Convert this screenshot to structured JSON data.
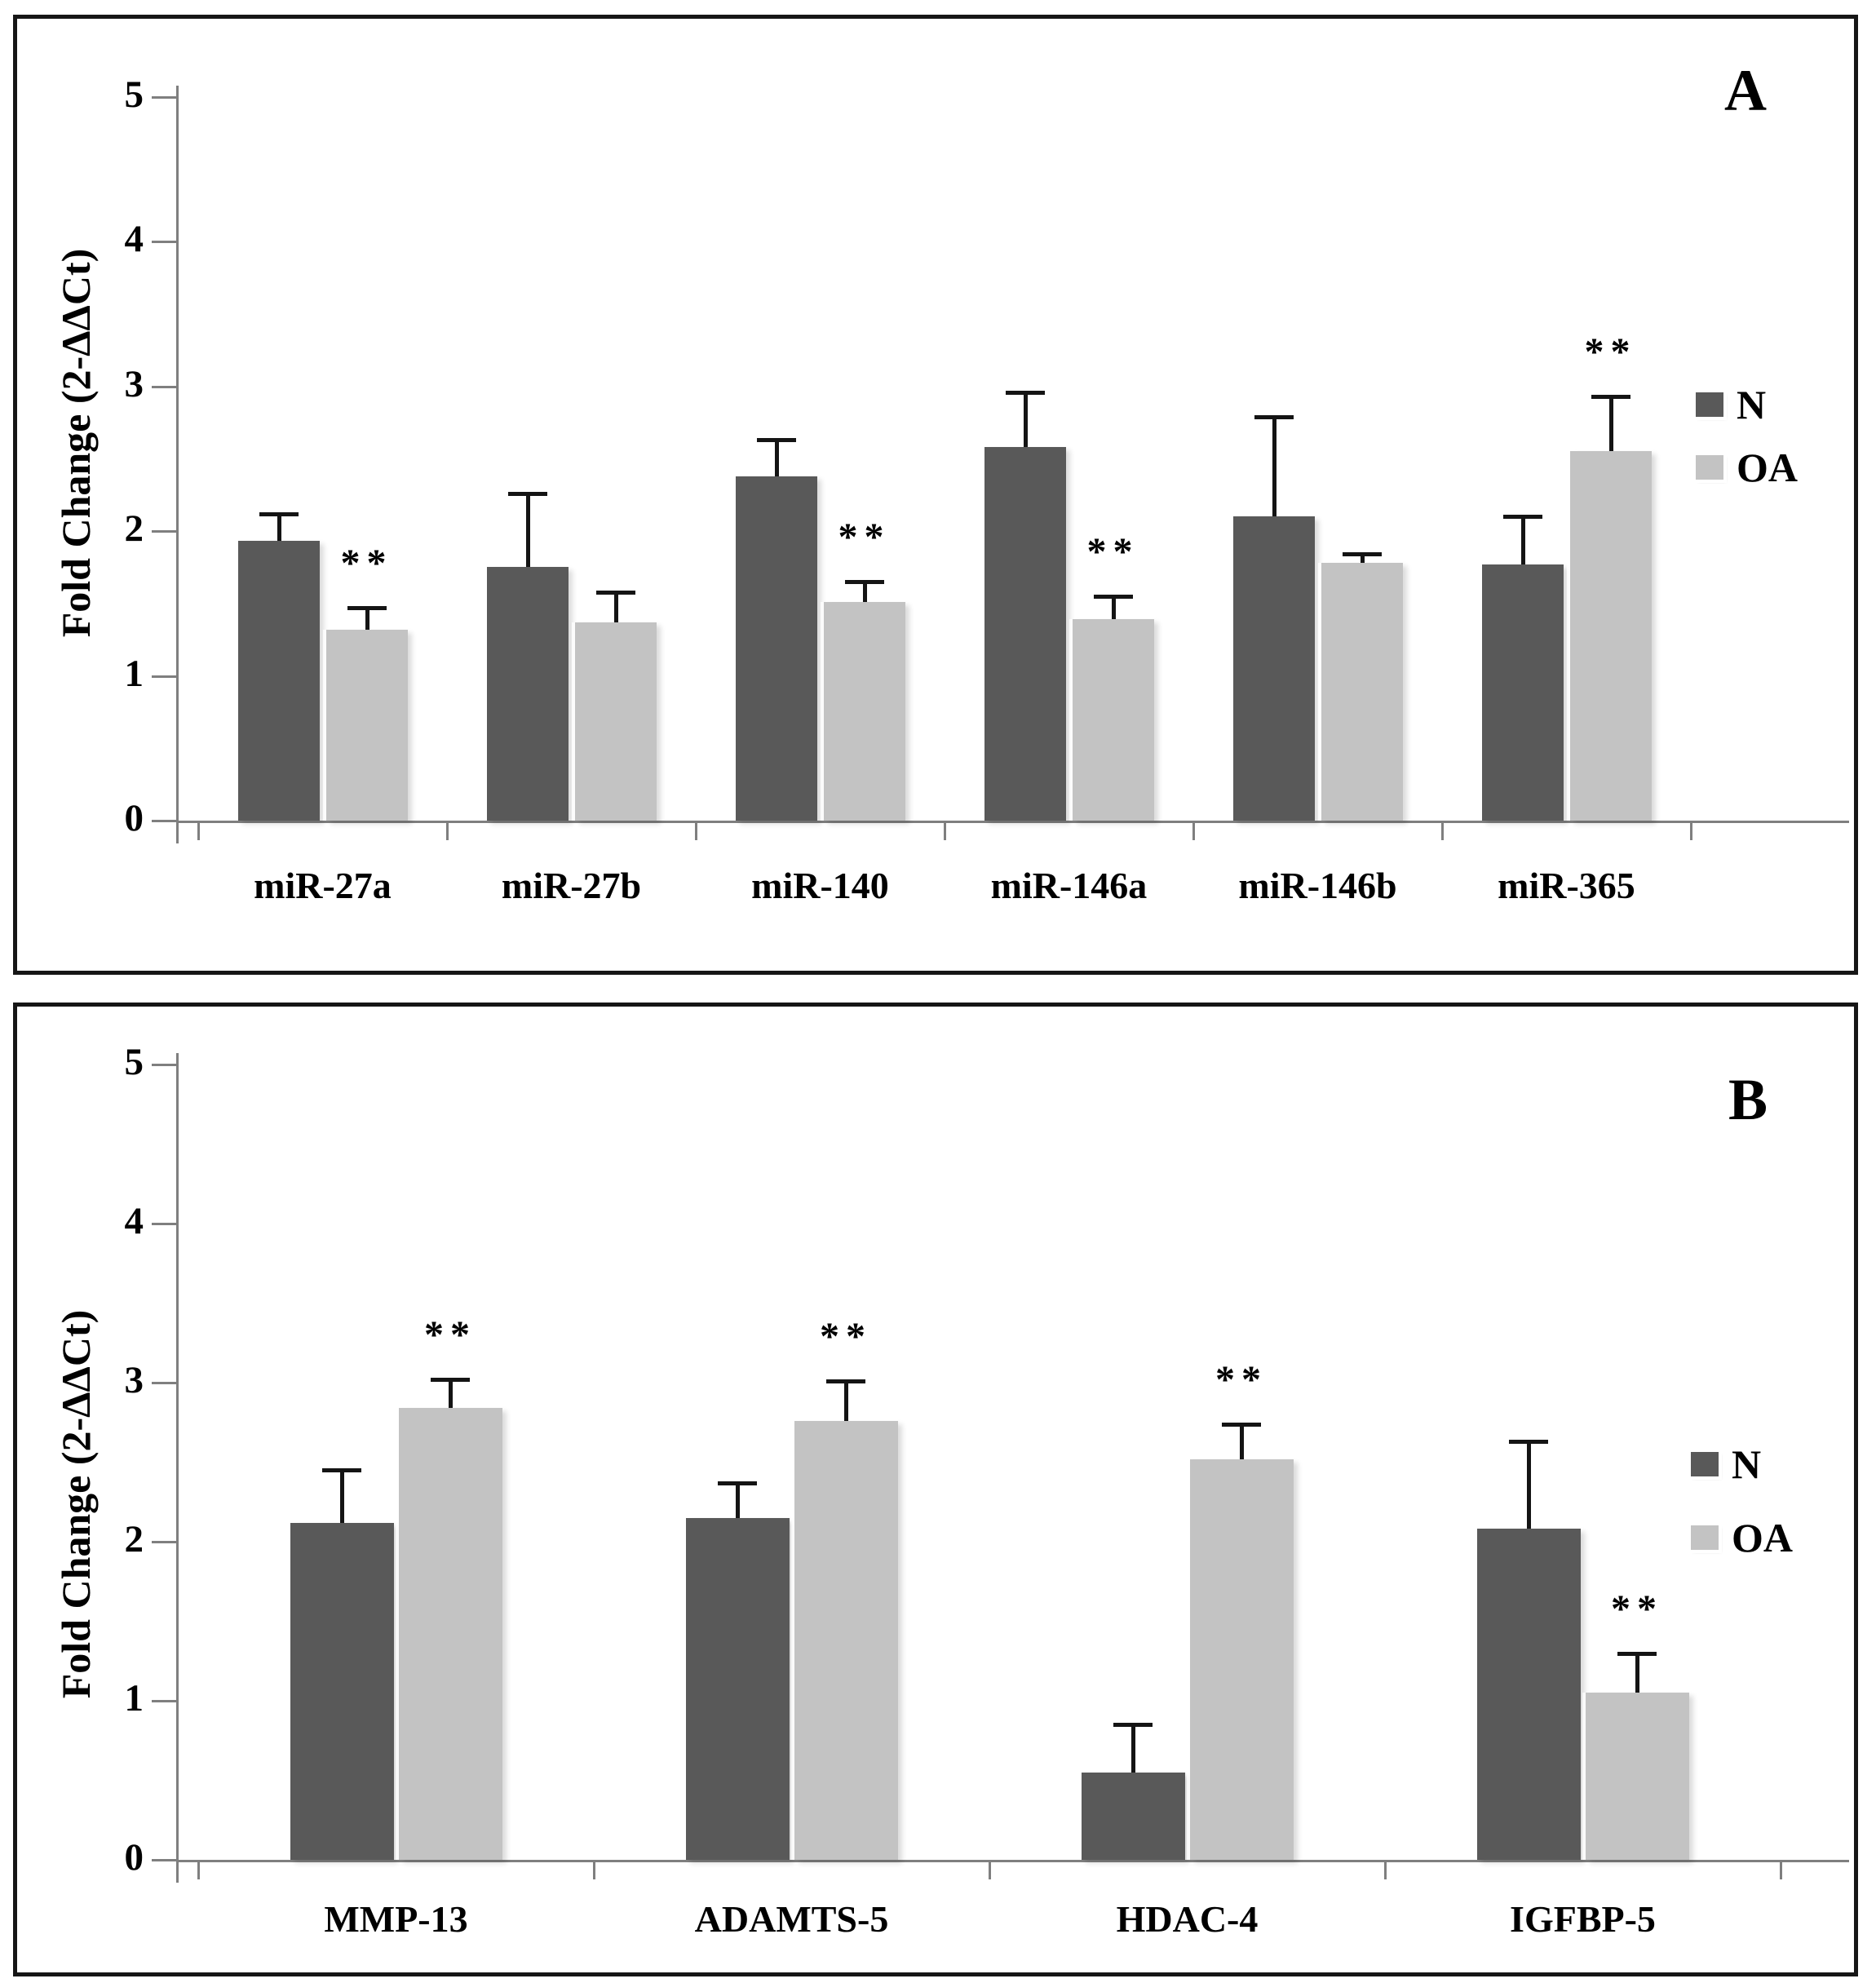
{
  "styles": {
    "bar_color_n": "#595959",
    "bar_color_oa": "#c3c3c3",
    "axis_color": "#7f7f7f",
    "error_bar_color": "#141414",
    "frame_color": "#161616",
    "text_color": "#000000",
    "background": "#ffffff"
  },
  "chart_data": [
    {
      "type": "bar",
      "panel_label": "A",
      "ylabel": "Fold Change (2-ΔΔCt)",
      "xlabel": "",
      "ylim": [
        0,
        5
      ],
      "yticks": [
        0,
        1,
        2,
        3,
        4,
        5
      ],
      "grid": false,
      "legend_position": "right",
      "categories": [
        "miR-27a",
        "miR-27b",
        "miR-140",
        "miR-146a",
        "miR-146b",
        "miR-365"
      ],
      "series": [
        {
          "name": "N",
          "color": "#595959",
          "values": [
            1.93,
            1.75,
            2.38,
            2.58,
            2.1,
            1.77
          ],
          "errors_plus": [
            0.19,
            0.51,
            0.25,
            0.38,
            0.69,
            0.33
          ],
          "significance": [
            "",
            "",
            "",
            "",
            "",
            ""
          ]
        },
        {
          "name": "OA",
          "color": "#c3c3c3",
          "values": [
            1.32,
            1.37,
            1.51,
            1.39,
            1.78,
            2.55
          ],
          "errors_plus": [
            0.15,
            0.21,
            0.14,
            0.16,
            0.06,
            0.38
          ],
          "significance": [
            "**",
            "",
            "**",
            "**",
            "",
            "**"
          ]
        }
      ]
    },
    {
      "type": "bar",
      "panel_label": "B",
      "ylabel": "Fold Change (2-ΔΔCt)",
      "xlabel": "",
      "ylim": [
        0,
        5
      ],
      "yticks": [
        0,
        1,
        2,
        3,
        4,
        5
      ],
      "grid": false,
      "legend_position": "right",
      "categories": [
        "MMP-13",
        "ADAMTS-5",
        "HDAC-4",
        "IGFBP-5"
      ],
      "series": [
        {
          "name": "N",
          "color": "#595959",
          "values": [
            2.12,
            2.15,
            0.55,
            2.08
          ],
          "errors_plus": [
            0.33,
            0.22,
            0.3,
            0.55
          ],
          "significance": [
            "",
            "",
            "",
            ""
          ]
        },
        {
          "name": "OA",
          "color": "#c3c3c3",
          "values": [
            2.84,
            2.76,
            2.52,
            1.05
          ],
          "errors_plus": [
            0.18,
            0.25,
            0.22,
            0.25
          ],
          "significance": [
            "**",
            "**",
            "**",
            "**"
          ]
        }
      ]
    }
  ]
}
